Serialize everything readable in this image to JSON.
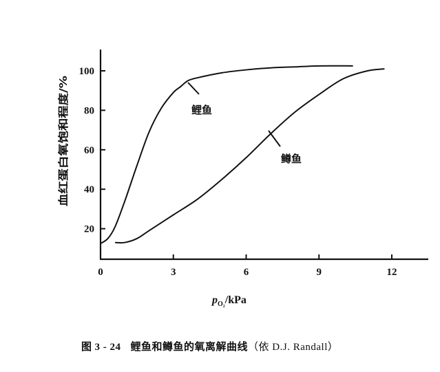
{
  "figure": {
    "caption_prefix": "图",
    "caption_number": "3 - 24",
    "caption_text": "鲤鱼和鳟鱼的氧离解曲线",
    "caption_source": "（依 D.J. Randall）"
  },
  "chart_data": {
    "type": "line",
    "title": "鲤鱼和鳟鱼的氧离解曲线（依 D.J. Randall）",
    "xlabel": "p_O2/kPa",
    "xlabel_main": "p",
    "xlabel_sub": "O₂",
    "xlabel_unit": "/kPa",
    "ylabel": "血红蛋白氧饱和程度/%",
    "xlim": [
      0,
      13.5
    ],
    "ylim": [
      5,
      110
    ],
    "xticks": [
      0,
      3,
      6,
      9,
      12
    ],
    "xtick_labels": [
      "0",
      "3",
      "6",
      "9",
      "12"
    ],
    "yticks": [
      20,
      40,
      60,
      80,
      100
    ],
    "ytick_labels": [
      "20",
      "40",
      "60",
      "80",
      "100"
    ],
    "grid": false,
    "legend": "none (curves labeled directly)",
    "series": [
      {
        "name": "鲤鱼",
        "x": [
          0,
          0.3,
          0.6,
          1.0,
          1.5,
          2.0,
          2.5,
          3.0,
          3.3,
          3.6,
          4.0,
          5.0,
          6.0,
          7.0,
          8.0,
          9.0,
          10.4
        ],
        "y": [
          12.5,
          15,
          21,
          34,
          52,
          69,
          81,
          89,
          92,
          95,
          96.5,
          99,
          100.5,
          101.5,
          102,
          102.5,
          102.5
        ],
        "label_anchor": {
          "x": 3.6,
          "y": 94
        }
      },
      {
        "name": "鳟鱼",
        "x": [
          0.6,
          1.0,
          1.5,
          2.0,
          3.0,
          4.0,
          5.0,
          6.0,
          7.0,
          8.0,
          9.0,
          10.0,
          11.0,
          11.7
        ],
        "y": [
          13,
          13,
          15,
          19,
          27,
          35,
          45,
          56,
          68,
          79,
          88,
          96,
          100,
          101
        ],
        "label_anchor": {
          "x": 6.9,
          "y": 68
        }
      }
    ]
  }
}
